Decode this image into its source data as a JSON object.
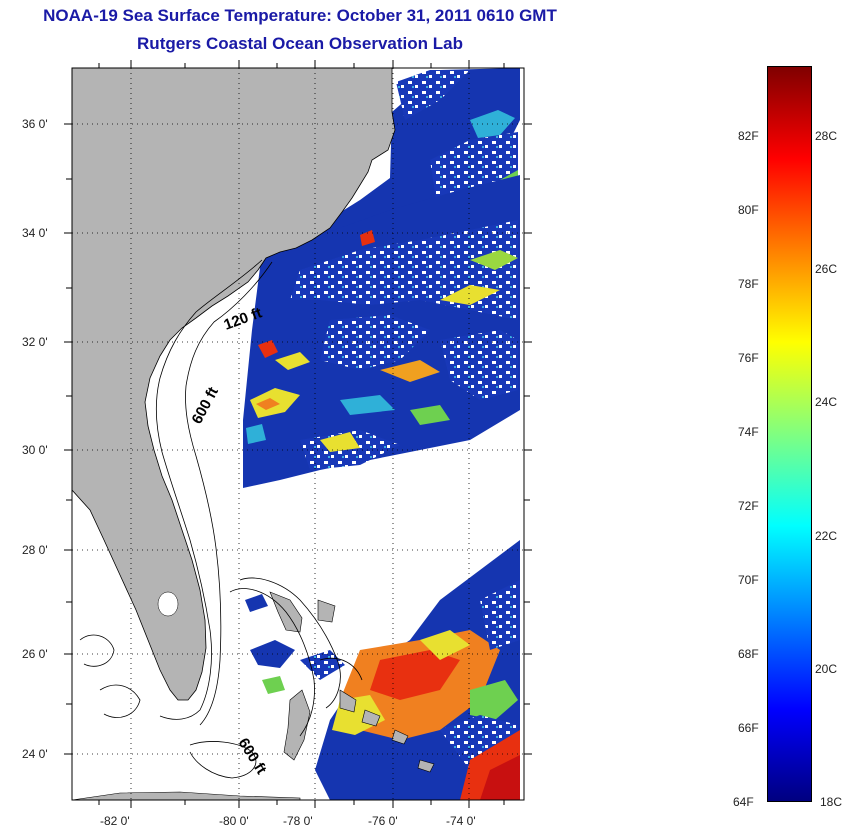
{
  "title": {
    "line1": "NOAA-19 Sea Surface Temperature:  October 31, 2011 0610 GMT",
    "line2": "Rutgers Coastal Ocean Observation Lab"
  },
  "map": {
    "lat_labels": [
      "36 0'",
      "34 0'",
      "32 0'",
      "30 0'",
      "28 0'",
      "26 0'",
      "24 0'"
    ],
    "lon_labels": [
      "-82 0'",
      "-80 0'",
      "-78 0'",
      "-76 0'",
      "-74 0'"
    ],
    "contour_labels": [
      "120 ft",
      "600 ft",
      "600 ft"
    ],
    "colors": {
      "land": "#b4b4b4",
      "ocean_nodata": "#ffffff",
      "cold": "#1030a8",
      "warm": "#e8e030",
      "hot": "#e83010"
    }
  },
  "colorbar": {
    "fahrenheit": [
      "82F",
      "80F",
      "78F",
      "76F",
      "74F",
      "72F",
      "70F",
      "68F",
      "66F",
      "64F"
    ],
    "celsius": [
      "28C",
      "26C",
      "24C",
      "22C",
      "20C",
      "18C"
    ],
    "range_c": [
      18,
      29.2
    ],
    "colormap": "jet"
  }
}
